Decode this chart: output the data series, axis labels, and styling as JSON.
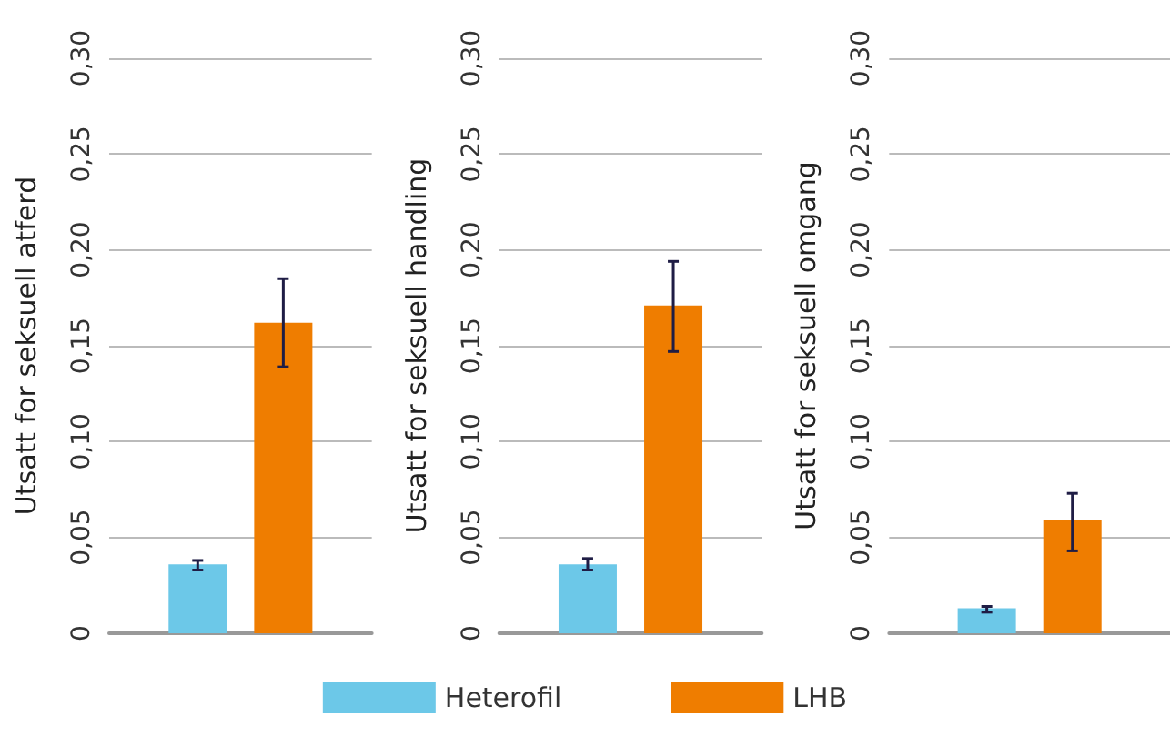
{
  "chart_data": [
    {
      "type": "bar",
      "ylabel": "Utsatt for seksuell atferd",
      "categories": [
        null
      ],
      "series": [
        {
          "color": "#6cc8e8",
          "values": [
            0.036
          ],
          "errors": [
            [
              0.033,
              0.038
            ]
          ]
        },
        {
          "color": "#ef7d00",
          "values": [
            0.162
          ],
          "errors": [
            [
              0.139,
              0.185
            ]
          ]
        }
      ],
      "ylim": [
        0,
        0.3
      ],
      "yticks": [
        {
          "value": 0,
          "label": "0"
        },
        {
          "value": 0.05,
          "label": "0,05"
        },
        {
          "value": 0.1,
          "label": "0,10"
        },
        {
          "value": 0.15,
          "label": "0,15"
        },
        {
          "value": 0.2,
          "label": "0,20"
        },
        {
          "value": 0.25,
          "label": "0,25"
        },
        {
          "value": 0.3,
          "label": "0,30"
        }
      ],
      "grid": "y",
      "legend": false
    },
    {
      "type": "bar",
      "ylabel": "Utsatt for seksuell handling",
      "categories": [
        null
      ],
      "series": [
        {
          "name": "Heterofil",
          "color": "#6cc8e8",
          "values": [
            0.036
          ],
          "errors": [
            [
              0.033,
              0.039
            ]
          ]
        },
        {
          "name": "LHB",
          "color": "#ef7d00",
          "values": [
            0.171
          ],
          "errors": [
            [
              0.147,
              0.194
            ]
          ]
        }
      ],
      "ylim": [
        0,
        0.3
      ],
      "yticks": [
        {
          "value": 0,
          "label": "0"
        },
        {
          "value": 0.05,
          "label": "0,05"
        },
        {
          "value": 0.1,
          "label": "0,10"
        },
        {
          "value": 0.15,
          "label": "0,15"
        },
        {
          "value": 0.2,
          "label": "0,20"
        },
        {
          "value": 0.25,
          "label": "0,25"
        },
        {
          "value": 0.3,
          "label": "0,30"
        }
      ],
      "grid": "y",
      "legend": "bottom"
    },
    {
      "type": "bar",
      "ylabel": "Utsatt for seksuell omgang",
      "categories": [
        null
      ],
      "series": [
        {
          "color": "#6cc8e8",
          "values": [
            0.013
          ],
          "errors": [
            [
              0.011,
              0.014
            ]
          ]
        },
        {
          "color": "#ef7d00",
          "values": [
            0.059
          ],
          "errors": [
            [
              0.043,
              0.073
            ]
          ]
        }
      ],
      "ylim": [
        0,
        0.3
      ],
      "yticks": [
        {
          "value": 0,
          "label": "0"
        },
        {
          "value": 0.05,
          "label": "0,05"
        },
        {
          "value": 0.1,
          "label": "0,10"
        },
        {
          "value": 0.15,
          "label": "0,15"
        },
        {
          "value": 0.2,
          "label": "0,20"
        },
        {
          "value": 0.25,
          "label": "0,25"
        },
        {
          "value": 0.3,
          "label": "0,30"
        }
      ],
      "grid": "y",
      "legend": false
    }
  ]
}
